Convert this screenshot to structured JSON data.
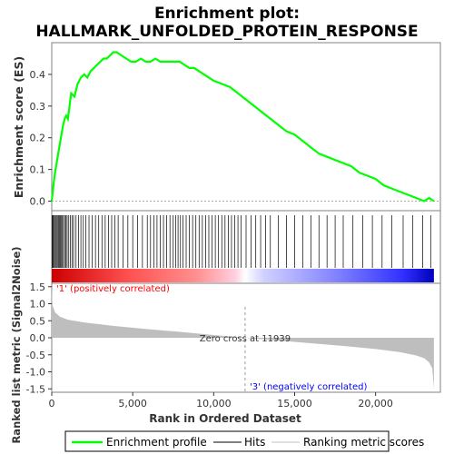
{
  "chart_data": {
    "type": "line",
    "title_line1": "Enrichment plot:",
    "title_line2": "HALLMARK_UNFOLDED_PROTEIN_RESPONSE",
    "top_panel": {
      "ylabel": "Enrichment score (ES)",
      "ylim": [
        -0.03,
        0.5
      ],
      "yticks": [
        "0.0",
        "0.1",
        "0.2",
        "0.3",
        "0.4"
      ],
      "ytick_values": [
        0.0,
        0.1,
        0.2,
        0.3,
        0.4
      ],
      "series": [
        {
          "name": "Enrichment profile",
          "color": "#00ff00",
          "x": [
            0,
            100,
            200,
            300,
            400,
            500,
            600,
            700,
            800,
            900,
            1000,
            1200,
            1400,
            1600,
            1800,
            2000,
            2200,
            2400,
            2600,
            2800,
            3000,
            3200,
            3400,
            3600,
            3800,
            4000,
            4300,
            4600,
            4900,
            5200,
            5500,
            5800,
            6100,
            6400,
            6700,
            7000,
            7300,
            7600,
            7900,
            8200,
            8500,
            8800,
            9100,
            9400,
            9700,
            10000,
            10500,
            11000,
            11500,
            12000,
            12500,
            13000,
            13500,
            14000,
            14500,
            15000,
            15500,
            16000,
            16500,
            17000,
            17500,
            18000,
            18500,
            19000,
            19500,
            20000,
            20500,
            21000,
            21500,
            22000,
            22500,
            23000,
            23300,
            23600
          ],
          "y": [
            0.0,
            0.05,
            0.09,
            0.12,
            0.15,
            0.18,
            0.21,
            0.24,
            0.26,
            0.27,
            0.26,
            0.34,
            0.33,
            0.37,
            0.39,
            0.4,
            0.39,
            0.41,
            0.42,
            0.43,
            0.44,
            0.45,
            0.45,
            0.46,
            0.47,
            0.47,
            0.46,
            0.45,
            0.44,
            0.44,
            0.45,
            0.44,
            0.44,
            0.45,
            0.44,
            0.44,
            0.44,
            0.44,
            0.44,
            0.43,
            0.42,
            0.42,
            0.41,
            0.4,
            0.39,
            0.38,
            0.37,
            0.36,
            0.34,
            0.32,
            0.3,
            0.28,
            0.26,
            0.24,
            0.22,
            0.21,
            0.19,
            0.17,
            0.15,
            0.14,
            0.13,
            0.12,
            0.11,
            0.09,
            0.08,
            0.07,
            0.05,
            0.04,
            0.03,
            0.02,
            0.01,
            0.0,
            0.01,
            0.0
          ]
        }
      ]
    },
    "hits": [
      20,
      60,
      110,
      170,
      230,
      290,
      350,
      420,
      480,
      540,
      600,
      660,
      720,
      800,
      880,
      950,
      1050,
      1150,
      1250,
      1350,
      1500,
      1650,
      1800,
      1950,
      2100,
      2300,
      2500,
      2700,
      2900,
      3100,
      3300,
      3500,
      3700,
      3900,
      4100,
      4400,
      4700,
      5000,
      5300,
      5600,
      5900,
      6100,
      6300,
      6500,
      6700,
      6900,
      7100,
      7300,
      7500,
      7650,
      7800,
      7950,
      8100,
      8300,
      8500,
      8700,
      8900,
      9100,
      9300,
      9500,
      9700,
      9900,
      10100,
      10300,
      10500,
      10700,
      10900,
      11100,
      11300,
      11500,
      11700,
      12000,
      12300,
      12600,
      12900,
      13200,
      13500,
      14000,
      14500,
      15000,
      15500,
      16000,
      16500,
      17000,
      17500,
      18000,
      18600,
      19200,
      19800,
      20400,
      21000,
      21700,
      22300,
      22900,
      23400
    ],
    "bottom_panel": {
      "ylabel": "Ranked list metric (Signal2Noise)",
      "xlabel": "Rank in Ordered Dataset",
      "ylim": [
        -1.6,
        1.6
      ],
      "yticks": [
        "1.5",
        "1.0",
        "0.5",
        "0.0",
        "-0.5",
        "-1.0",
        "-1.5"
      ],
      "ytick_values": [
        1.5,
        1.0,
        0.5,
        0.0,
        -0.5,
        -1.0,
        -1.5
      ],
      "metric_x": [
        0,
        50,
        200,
        500,
        1000,
        2000,
        4000,
        6000,
        8000,
        10000,
        11939,
        14000,
        16000,
        18000,
        20000,
        21500,
        22500,
        23000,
        23300,
        23500,
        23600
      ],
      "metric_y": [
        1.5,
        0.95,
        0.75,
        0.62,
        0.53,
        0.45,
        0.34,
        0.25,
        0.17,
        0.08,
        0.0,
        -0.08,
        -0.16,
        -0.24,
        -0.33,
        -0.42,
        -0.52,
        -0.6,
        -0.72,
        -0.9,
        -1.5
      ],
      "zero_cross_label": "Zero cross at 11939",
      "zero_cross": 11939,
      "pos_label": "'1' (positively correlated)",
      "neg_label": "'3' (negatively correlated)"
    },
    "xlim": [
      0,
      24000
    ],
    "xticks": [
      "0",
      "5,000",
      "10,000",
      "15,000",
      "20,000"
    ],
    "xtick_values": [
      0,
      5000,
      10000,
      15000,
      20000
    ],
    "n_genes": 23600,
    "legend": [
      {
        "label": "Enrichment profile",
        "color": "#00ff00"
      },
      {
        "label": "Hits",
        "color": "#000000"
      },
      {
        "label": "Ranking metric scores",
        "color": "#c0c0c0"
      }
    ],
    "colors": {
      "pos_text": "#ff0000",
      "neg_text": "#0000ff",
      "metric_fill": "#bebebe"
    }
  }
}
